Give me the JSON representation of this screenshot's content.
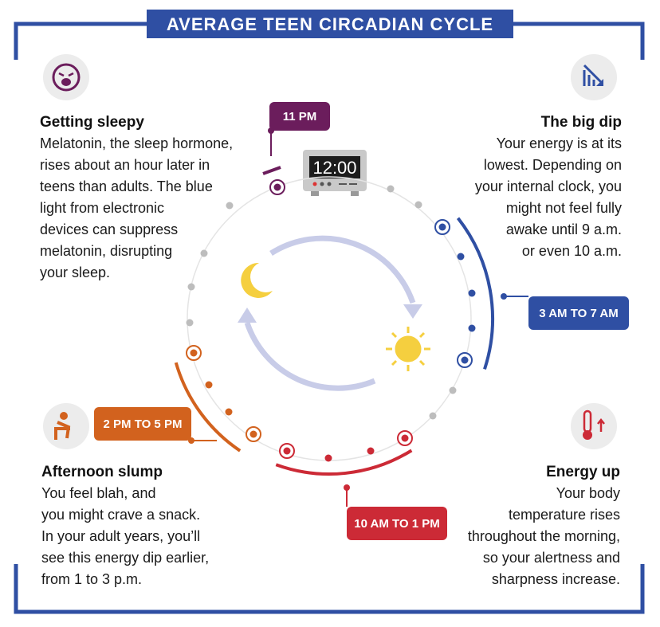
{
  "title": "AVERAGE TEEN CIRCADIAN CYCLE",
  "clock": "12:00",
  "sections": [
    {
      "heading": "Getting sleepy",
      "lines": [
        "Melatonin, the sleep hormone,",
        "rises about an hour later in",
        "teens than adults. The blue",
        "light from electronic",
        "devices can suppress",
        "melatonin, disrupting",
        "your sleep."
      ]
    },
    {
      "heading": "The big dip",
      "lines": [
        "Your energy is at its",
        "lowest. Depending on",
        "your internal clock, you",
        "might not feel fully",
        "awake until 9 a.m.",
        "or even 10 a.m."
      ]
    },
    {
      "heading": "Afternoon slump",
      "lines": [
        "You feel blah, and",
        "you might crave a snack.",
        "In your adult years, you’ll",
        "see this energy dip earlier,",
        "from 1 to 3 p.m."
      ]
    },
    {
      "heading": "Energy up",
      "lines": [
        "Your body",
        "temperature rises",
        "throughout the morning,",
        "so your alertness and",
        "sharpness increase."
      ]
    }
  ],
  "badges": [
    "11 PM",
    "3 AM TO 7 AM",
    "2 PM TO 5 PM",
    "10 AM TO 1 PM"
  ]
}
